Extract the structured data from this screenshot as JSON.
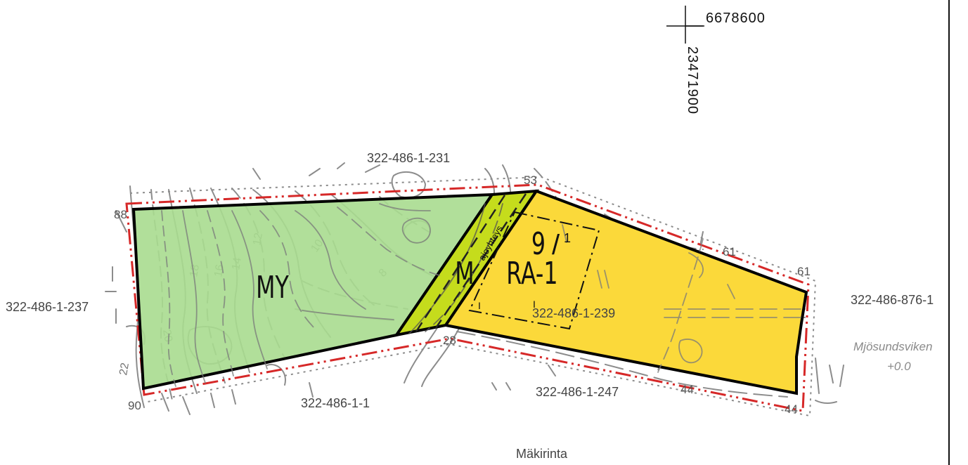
{
  "map": {
    "coordinates": {
      "northing": "6678600",
      "easting": "23471900"
    },
    "zones": [
      {
        "id": "my",
        "code": "MY",
        "color": "#a8dc8f"
      },
      {
        "id": "m",
        "code": "M",
        "color": "#c5dc1c"
      },
      {
        "id": "ra",
        "code": "RA-1",
        "color": "#fbd93a"
      }
    ],
    "building_site": {
      "number": "9",
      "fraction": "/",
      "count": "1",
      "marker": "I"
    },
    "road_label": "ajoyhteys",
    "parcels": {
      "north": "322-486-1-231",
      "west": "322-486-1-237",
      "center": "322-486-1-239",
      "south_west": "322-486-1-1",
      "south_east": "322-486-1-247",
      "east": "322-486-876-1"
    },
    "elevation_points": [
      "88",
      "53",
      "61",
      "61",
      "28",
      "44",
      "44",
      "90"
    ],
    "water": {
      "name": "Mjösundsviken",
      "level": "+0.0"
    },
    "road_name": "Mäkirinta",
    "colors": {
      "boundary": "#000000",
      "plan_limit": "#d62828",
      "terrain": "#8c8c8c"
    }
  }
}
